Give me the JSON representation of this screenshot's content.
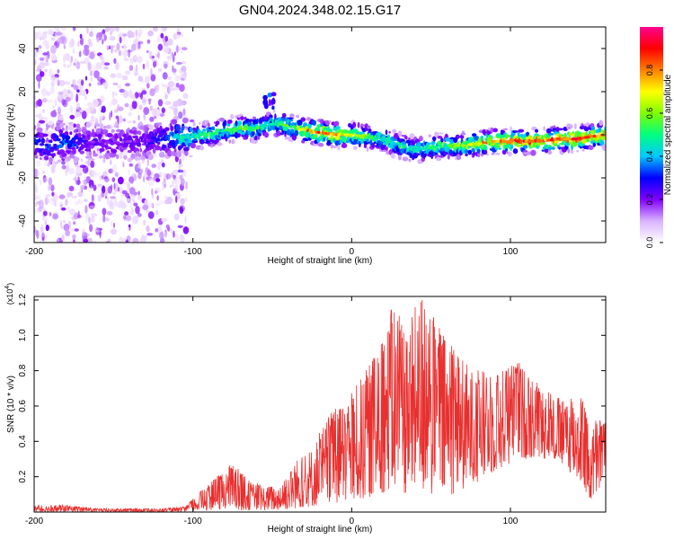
{
  "title": "GN04.2024.348.02.15.G17",
  "chart_data": [
    {
      "type": "heatmap",
      "xlabel": "Height of straight line (km)",
      "ylabel": "Frequency (Hz)",
      "xlim": [
        -200,
        160
      ],
      "ylim": [
        -50,
        50
      ],
      "x_ticks": [
        "-200",
        "-100",
        "0",
        "100"
      ],
      "y_ticks": [
        "-40",
        "-20",
        "0",
        "20",
        "40"
      ],
      "colorbar": {
        "label": "Normalized spectral amplitude",
        "range": [
          0,
          1
        ],
        "ticks": [
          "0.0",
          "0.2",
          "0.4",
          "0.6",
          "0.8"
        ],
        "colors": [
          "#ffffff",
          "#d9b3ff",
          "#8000ff",
          "#0000ff",
          "#00c8ff",
          "#00ff80",
          "#80ff00",
          "#ffff00",
          "#ff8000",
          "#ff0000",
          "#ff0090"
        ]
      },
      "ridge": {
        "x": [
          -200,
          -190,
          -180,
          -170,
          -160,
          -150,
          -140,
          -130,
          -120,
          -110,
          -100,
          -90,
          -80,
          -70,
          -60,
          -55,
          -50,
          -45,
          -40,
          -30,
          -20,
          -10,
          0,
          10,
          20,
          30,
          40,
          50,
          60,
          70,
          80,
          90,
          100,
          110,
          120,
          130,
          140,
          150,
          160
        ],
        "y": [
          -4,
          -5,
          -3,
          -4,
          -3,
          -4,
          -3,
          -3,
          -2,
          -1,
          -1,
          0,
          2,
          3,
          3,
          4,
          5,
          5,
          4,
          2,
          1,
          0,
          0,
          -1,
          -2,
          -5,
          -7,
          -6,
          -5,
          -5,
          -4,
          -3,
          -3,
          -3,
          -3,
          -2,
          -2,
          -1,
          0
        ],
        "max_amplitude": [
          0.3,
          0.35,
          0.35,
          0.25,
          0.2,
          0.2,
          0.2,
          0.2,
          0.3,
          0.5,
          0.5,
          0.55,
          0.55,
          0.6,
          0.6,
          0.5,
          0.5,
          0.6,
          0.6,
          0.8,
          0.9,
          0.85,
          0.7,
          0.6,
          0.5,
          0.5,
          0.5,
          0.55,
          0.6,
          0.7,
          0.8,
          0.85,
          0.9,
          0.92,
          0.92,
          0.95,
          0.95,
          0.9,
          0.85
        ]
      },
      "secondary_blob": {
        "x": -52,
        "y": 16,
        "amplitude": 0.35
      }
    },
    {
      "type": "line",
      "xlabel": "Height of straight line (km)",
      "ylabel": "SNR (10 * v/v)",
      "y_multiplier": "(x10^4)",
      "xlim": [
        -200,
        160
      ],
      "ylim": [
        0,
        1.22
      ],
      "x_ticks": [
        "-200",
        "-100",
        "0",
        "100"
      ],
      "y_ticks": [
        "0.2",
        "0.4",
        "0.6",
        "0.8",
        "1.0",
        "1.2"
      ],
      "color": "#e8302f",
      "envelope": {
        "x": [
          -200,
          -180,
          -160,
          -140,
          -120,
          -105,
          -95,
          -85,
          -75,
          -65,
          -55,
          -45,
          -35,
          -25,
          -15,
          -5,
          5,
          15,
          25,
          35,
          45,
          55,
          65,
          75,
          85,
          95,
          105,
          115,
          125,
          135,
          145,
          150,
          155,
          160
        ],
        "upper": [
          0.04,
          0.04,
          0.02,
          0.02,
          0.02,
          0.03,
          0.12,
          0.2,
          0.28,
          0.18,
          0.15,
          0.14,
          0.3,
          0.37,
          0.55,
          0.62,
          0.75,
          0.9,
          1.15,
          1.1,
          1.22,
          1.05,
          0.95,
          0.82,
          0.8,
          0.82,
          0.86,
          0.75,
          0.68,
          0.62,
          0.72,
          0.45,
          0.55,
          0.5
        ],
        "lower": [
          0.0,
          0.0,
          0.0,
          0.0,
          0.0,
          0.0,
          0.01,
          0.01,
          0.01,
          0.01,
          0.01,
          0.01,
          0.02,
          0.03,
          0.04,
          0.05,
          0.06,
          0.1,
          0.12,
          0.1,
          0.1,
          0.08,
          0.1,
          0.15,
          0.2,
          0.25,
          0.3,
          0.3,
          0.3,
          0.25,
          0.15,
          0.05,
          0.1,
          0.2
        ]
      }
    }
  ]
}
